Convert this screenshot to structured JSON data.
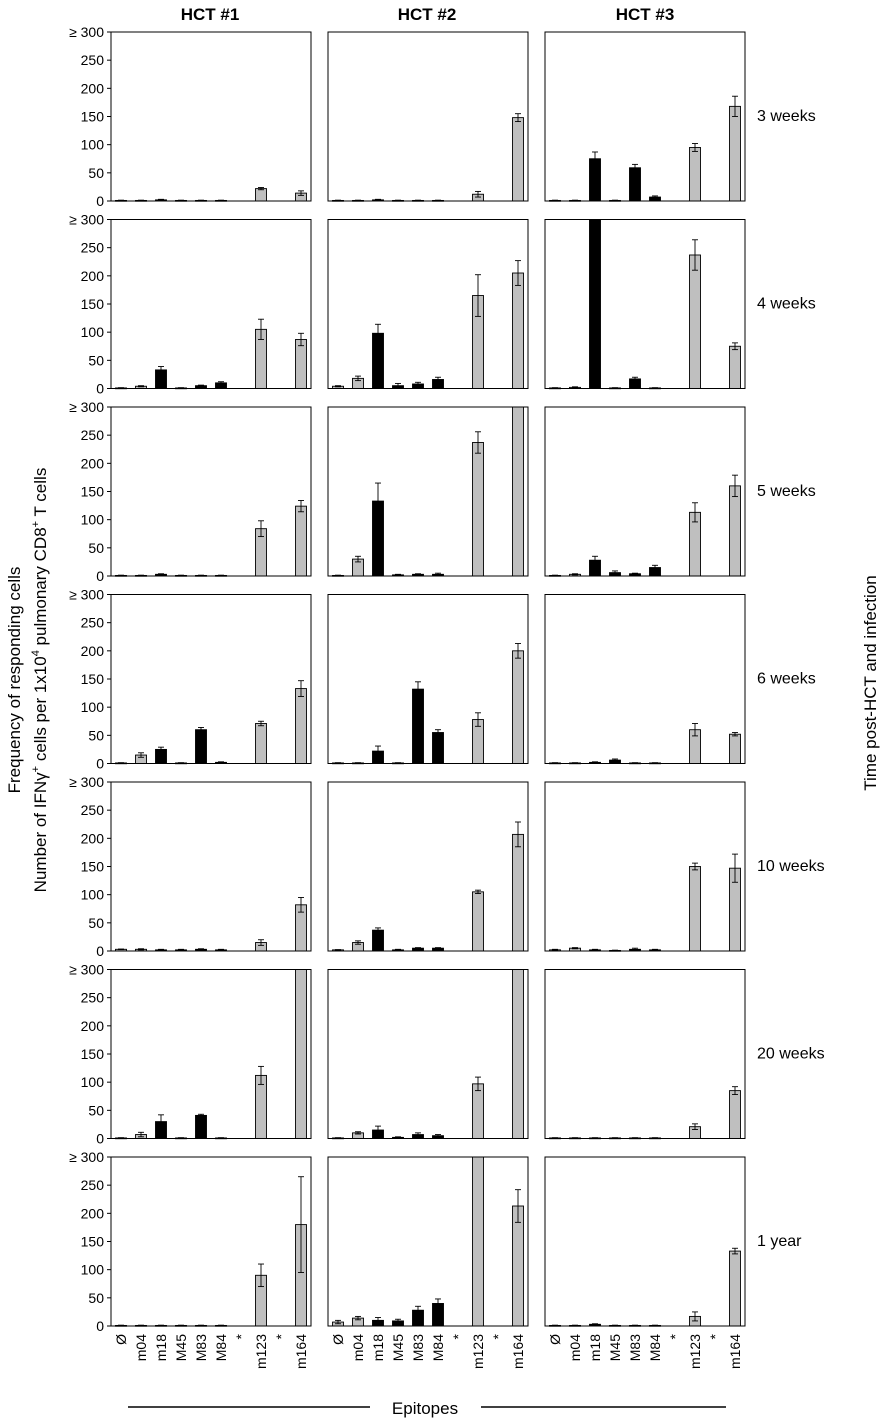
{
  "chart_data": {
    "type": "bar",
    "title": "",
    "columns": [
      "HCT #1",
      "HCT #2",
      "HCT #3"
    ],
    "rows": [
      "3 weeks",
      "4 weeks",
      "5 weeks",
      "6 weeks",
      "10 weeks",
      "20 weeks",
      "1 year"
    ],
    "categories": [
      "Ø",
      "m04",
      "m18",
      "M45",
      "M83",
      "M84",
      "*",
      "m123",
      "*",
      "m164"
    ],
    "bar_kinds": [
      "gray",
      "gray",
      "black",
      "black",
      "black",
      "black",
      "none",
      "gray",
      "none",
      "gray"
    ],
    "yticks": [
      "0",
      "50",
      "100",
      "150",
      "200",
      "250",
      "≥ 300"
    ],
    "ylim": [
      0,
      300
    ],
    "xlabel": "Epitopes",
    "ylabel_line1": "Frequency of responding cells",
    "ylabel_line2_pre": "Number of IFNγ",
    "ylabel_line2_sup1": "+",
    "ylabel_line2_mid": " cells per 1x10",
    "ylabel_line2_sup2": "4",
    "ylabel_line2_post": " pulmonary  CD8",
    "ylabel_line2_sup3": "+",
    "ylabel_line2_end": " T cells",
    "right_label": "Time post-HCT and infection",
    "colors": {
      "black_bar": "#000000",
      "gray_bar": "#bfbfbf",
      "axis": "#000000"
    },
    "panels": [
      [
        {
          "values": [
            1,
            1,
            2,
            1,
            1,
            1,
            null,
            22,
            null,
            14
          ],
          "errors": [
            0.5,
            0.5,
            1,
            0.5,
            0.5,
            0.5,
            null,
            2,
            null,
            4
          ]
        },
        {
          "values": [
            1,
            4,
            33,
            1,
            5,
            10,
            null,
            105,
            null,
            87
          ],
          "errors": [
            0.5,
            1,
            6,
            0.5,
            1,
            2,
            null,
            18,
            null,
            11
          ]
        },
        {
          "values": [
            1,
            1,
            3,
            1,
            1,
            1,
            null,
            84,
            null,
            124
          ],
          "errors": [
            0.5,
            0.5,
            1,
            0.5,
            0.5,
            0.5,
            null,
            14,
            null,
            10
          ]
        },
        {
          "values": [
            1,
            15,
            25,
            1,
            60,
            2,
            null,
            71,
            null,
            133
          ],
          "errors": [
            0.5,
            4,
            4,
            0.5,
            4,
            1,
            null,
            4,
            null,
            14
          ]
        },
        {
          "values": [
            3,
            3,
            2,
            2,
            3,
            2,
            null,
            15,
            null,
            82
          ],
          "errors": [
            0.5,
            1,
            1,
            1,
            1,
            1,
            null,
            5,
            null,
            13
          ]
        },
        {
          "values": [
            1,
            7,
            30,
            1,
            41,
            1,
            null,
            112,
            null,
            300
          ],
          "errors": [
            0.5,
            4,
            12,
            0.5,
            2,
            0.5,
            null,
            16,
            null,
            0
          ]
        },
        {
          "values": [
            1,
            1,
            1,
            1,
            1,
            1,
            null,
            90,
            null,
            180
          ],
          "errors": [
            0.5,
            0.5,
            0.5,
            0.5,
            0.5,
            0.5,
            null,
            20,
            null,
            85
          ]
        }
      ],
      [
        {
          "values": [
            1,
            1,
            2,
            1,
            1,
            1,
            null,
            12,
            null,
            148
          ],
          "errors": [
            0.5,
            0.5,
            1,
            0.5,
            0.5,
            0.5,
            null,
            5,
            null,
            7
          ]
        },
        {
          "values": [
            4,
            18,
            98,
            5,
            8,
            16,
            null,
            165,
            null,
            205
          ],
          "errors": [
            1,
            4,
            16,
            4,
            3,
            4,
            null,
            37,
            null,
            22
          ]
        },
        {
          "values": [
            1,
            30,
            133,
            2,
            3,
            3,
            null,
            237,
            null,
            300
          ],
          "errors": [
            0.5,
            5,
            32,
            1,
            1,
            2,
            null,
            19,
            null,
            0
          ]
        },
        {
          "values": [
            1,
            1,
            22,
            1,
            132,
            55,
            null,
            78,
            null,
            200
          ],
          "errors": [
            0.5,
            0.5,
            9,
            0.5,
            13,
            5,
            null,
            12,
            null,
            13
          ]
        },
        {
          "values": [
            2,
            15,
            37,
            2,
            5,
            5,
            null,
            105,
            null,
            207
          ],
          "errors": [
            0.5,
            3,
            4,
            1,
            1,
            1,
            null,
            3,
            null,
            22
          ]
        },
        {
          "values": [
            1,
            10,
            15,
            2,
            7,
            5,
            null,
            97,
            null,
            300
          ],
          "errors": [
            0.5,
            2,
            7,
            1,
            3,
            2,
            null,
            12,
            null,
            0
          ]
        },
        {
          "values": [
            7,
            14,
            10,
            9,
            28,
            40,
            null,
            300,
            null,
            213
          ],
          "errors": [
            3,
            3,
            5,
            3,
            7,
            8,
            null,
            0,
            null,
            29
          ]
        }
      ],
      [
        {
          "values": [
            1,
            1,
            75,
            1,
            59,
            7,
            null,
            95,
            null,
            168
          ],
          "errors": [
            0.5,
            0.5,
            12,
            0.5,
            6,
            2,
            null,
            7,
            null,
            18
          ]
        },
        {
          "values": [
            1,
            2,
            300,
            1,
            17,
            1,
            null,
            237,
            null,
            75
          ],
          "errors": [
            0.5,
            1,
            0,
            0.5,
            3,
            0.5,
            null,
            27,
            null,
            6
          ]
        },
        {
          "values": [
            1,
            3,
            28,
            6,
            4,
            15,
            null,
            113,
            null,
            160
          ],
          "errors": [
            0.5,
            1,
            7,
            3,
            1,
            4,
            null,
            17,
            null,
            19
          ]
        },
        {
          "values": [
            1,
            1,
            2,
            6,
            1,
            1,
            null,
            60,
            null,
            52
          ],
          "errors": [
            0.5,
            0.5,
            1,
            2,
            0.5,
            0.5,
            null,
            11,
            null,
            3
          ]
        },
        {
          "values": [
            2,
            5,
            2,
            1,
            3,
            2,
            null,
            150,
            null,
            147
          ],
          "errors": [
            1,
            1,
            1,
            0.5,
            2,
            1,
            null,
            6,
            null,
            25
          ]
        },
        {
          "values": [
            1,
            1,
            1,
            1,
            1,
            1,
            null,
            21,
            null,
            85
          ],
          "errors": [
            0.5,
            0.5,
            0.5,
            0.5,
            0.5,
            0.5,
            null,
            5,
            null,
            7
          ]
        },
        {
          "values": [
            1,
            1,
            3,
            1,
            1,
            1,
            null,
            17,
            null,
            133
          ],
          "errors": [
            0.5,
            0.5,
            1,
            0.5,
            0.5,
            0.5,
            null,
            8,
            null,
            5
          ]
        }
      ]
    ]
  }
}
